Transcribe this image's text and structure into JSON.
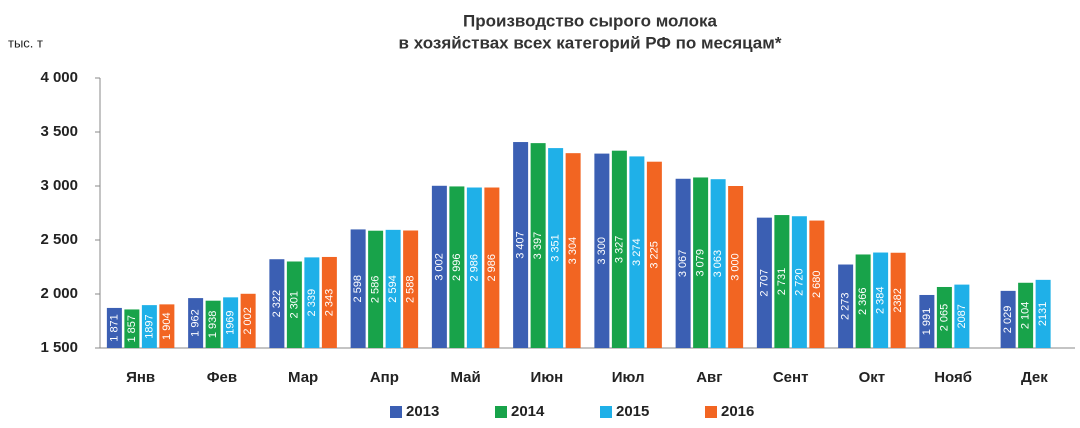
{
  "chart_data": {
    "type": "bar",
    "title": [
      "Производство сырого молока",
      "в хозяйствах всех категорий РФ по месяцам*"
    ],
    "y_label": "тыс. т",
    "categories": [
      "Янв",
      "Фев",
      "Мар",
      "Апр",
      "Май",
      "Июн",
      "Июл",
      "Авг",
      "Сент",
      "Окт",
      "Нояб",
      "Дек"
    ],
    "series": [
      {
        "name": "2013",
        "color": "#3b5fb3",
        "values": [
          1871,
          1962,
          2322,
          2598,
          3002,
          3407,
          3300,
          3067,
          2707,
          2273,
          1991,
          2029
        ],
        "value_labels": [
          "1 871",
          "1 962",
          "2 322",
          "2 598",
          "3 002",
          "3 407",
          "3 300",
          "3 067",
          "2 707",
          "2 273",
          "1 991",
          "2 029"
        ]
      },
      {
        "name": "2014",
        "color": "#18a34a",
        "values": [
          1857,
          1938,
          2301,
          2586,
          2996,
          3397,
          3327,
          3079,
          2731,
          2366,
          2065,
          2104
        ],
        "value_labels": [
          "1 857",
          "1 938",
          "2 301",
          "2 586",
          "2 996",
          "3 397",
          "3 327",
          "3 079",
          "2 731",
          "2 366",
          "2 065",
          "2 104"
        ]
      },
      {
        "name": "2015",
        "color": "#1fb0e8",
        "values": [
          1897,
          1969,
          2339,
          2594,
          2986,
          3351,
          3274,
          3063,
          2720,
          2384,
          2087,
          2131
        ],
        "value_labels": [
          "1897",
          "1969",
          "2 339",
          "2 594",
          "2 986",
          "3 351",
          "3 274",
          "3 063",
          "2 720",
          "2 384",
          "2087",
          "2131"
        ]
      },
      {
        "name": "2016",
        "color": "#f26522",
        "values": [
          1904,
          2002,
          2343,
          2588,
          2986,
          3304,
          3225,
          3000,
          2680,
          2382,
          null,
          null
        ],
        "value_labels": [
          "1 904",
          "2 002",
          "2 343",
          "2 588",
          "2 986",
          "3 304",
          "3 225",
          "3 000",
          "2 680",
          "2382",
          null,
          null
        ]
      }
    ],
    "ylim": [
      1500,
      4000
    ],
    "yticks": [
      {
        "value": 1500,
        "label": "1 500"
      },
      {
        "value": 2000,
        "label": "2 000"
      },
      {
        "value": 2500,
        "label": "2 500"
      },
      {
        "value": 3000,
        "label": "3 000"
      },
      {
        "value": 3500,
        "label": "3 500"
      },
      {
        "value": 4000,
        "label": "4 000"
      }
    ],
    "grid": false,
    "legend": "bottom"
  }
}
